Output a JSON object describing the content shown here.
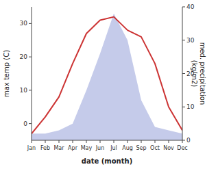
{
  "chart_data": {
    "type": "line",
    "categories": [
      "Jan",
      "Feb",
      "Mar",
      "Apr",
      "May",
      "Jun",
      "Jul",
      "Aug",
      "Sep",
      "Oct",
      "Nov",
      "Dec"
    ],
    "xlabel": "date (month)",
    "ylabel": "max temp (C)",
    "y2label": "med. precipitation\n(kg/m2)",
    "ylim": [
      -5,
      35
    ],
    "yticks": [
      0,
      10,
      20,
      30
    ],
    "y2lim": [
      0,
      40
    ],
    "y2ticks": [
      0,
      10,
      20,
      30,
      40
    ],
    "grid": false,
    "series": [
      {
        "type": "area",
        "axis": "y2",
        "color": "#c5cbea",
        "values": [
          2,
          2,
          3,
          5,
          15,
          26,
          38,
          30,
          12,
          4,
          3,
          2
        ]
      },
      {
        "type": "line",
        "color": "#cc3333",
        "values": [
          -3,
          2,
          8,
          18,
          27,
          31,
          32,
          28,
          26,
          18,
          5,
          -2
        ]
      }
    ]
  }
}
